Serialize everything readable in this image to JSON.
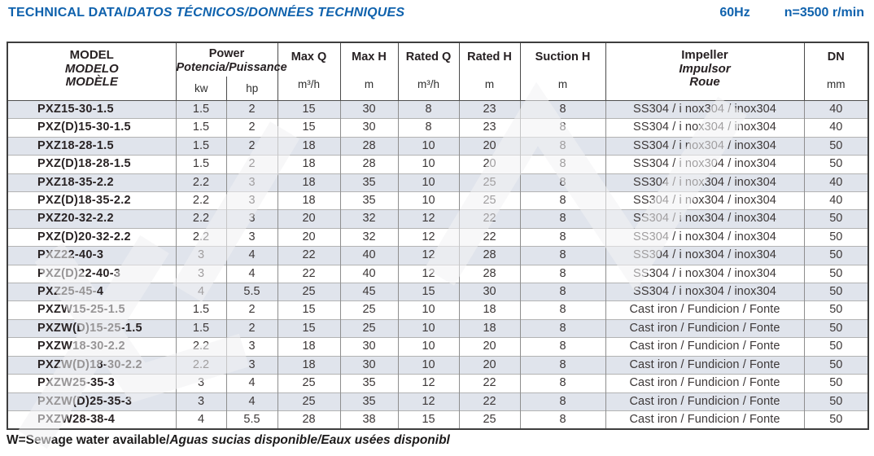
{
  "page": {
    "title_en": "TECHNICAL DATA/",
    "title_intl": "DATOS TÉCNICOS/DONNÉES TECHNIQUES",
    "frequency": "60Hz",
    "speed": "n=3500 r/min",
    "footnote_en": "W=Sewage water available/",
    "footnote_intl": "Aguas sucias disponible/Eaux usées disponibl"
  },
  "table": {
    "column_ids": [
      "model",
      "kw",
      "hp",
      "max-q",
      "max-h",
      "rated-q",
      "rated-h",
      "suction-h",
      "impeller",
      "dn"
    ],
    "headers": {
      "model": [
        "MODEL",
        "MODELO",
        "MODÈLE"
      ],
      "power": {
        "en": "Power",
        "intl": "Potencia/Puissance",
        "units": [
          "kw",
          "hp"
        ]
      },
      "max_q": {
        "label": "Max Q",
        "unit": "m³/h"
      },
      "max_h": {
        "label": "Max H",
        "unit": "m"
      },
      "rated_q": {
        "label": "Rated Q",
        "unit": "m³/h"
      },
      "rated_h": {
        "label": "Rated H",
        "unit": "m"
      },
      "suction_h": {
        "label": "Suction H",
        "unit": "m"
      },
      "impeller": [
        "Impeller",
        "Impulsor",
        "Roue"
      ],
      "dn": {
        "label": "DN",
        "unit": "mm"
      }
    },
    "rows": [
      [
        "PXZ15-30-1.5",
        "1.5",
        "2",
        "15",
        "30",
        "8",
        "23",
        "8",
        "SS304 / i nox304 / inox304",
        "40"
      ],
      [
        "PXZ(D)15-30-1.5",
        "1.5",
        "2",
        "15",
        "30",
        "8",
        "23",
        "8",
        "SS304 / i nox304 / inox304",
        "40"
      ],
      [
        "PXZ18-28-1.5",
        "1.5",
        "2",
        "18",
        "28",
        "10",
        "20",
        "8",
        "SS304 / i nox304 / inox304",
        "50"
      ],
      [
        "PXZ(D)18-28-1.5",
        "1.5",
        "2",
        "18",
        "28",
        "10",
        "20",
        "8",
        "SS304 / i nox304 / inox304",
        "50"
      ],
      [
        "PXZ18-35-2.2",
        "2.2",
        "3",
        "18",
        "35",
        "10",
        "25",
        "8",
        "SS304 / i nox304 / inox304",
        "40"
      ],
      [
        "PXZ(D)18-35-2.2",
        "2.2",
        "3",
        "18",
        "35",
        "10",
        "25",
        "8",
        "SS304 / i nox304 / inox304",
        "40"
      ],
      [
        "PXZ20-32-2.2",
        "2.2",
        "3",
        "20",
        "32",
        "12",
        "22",
        "8",
        "SS304 / i nox304 / inox304",
        "50"
      ],
      [
        "PXZ(D)20-32-2.2",
        "2.2",
        "3",
        "20",
        "32",
        "12",
        "22",
        "8",
        "SS304 / i nox304 / inox304",
        "50"
      ],
      [
        "PXZ22-40-3",
        "3",
        "4",
        "22",
        "40",
        "12",
        "28",
        "8",
        "SS304 / i nox304 / inox304",
        "50"
      ],
      [
        "PXZ(D)22-40-3",
        "3",
        "4",
        "22",
        "40",
        "12",
        "28",
        "8",
        "SS304 / i nox304 / inox304",
        "50"
      ],
      [
        "PXZ25-45-4",
        "4",
        "5.5",
        "25",
        "45",
        "15",
        "30",
        "8",
        "SS304 / i nox304 / inox304",
        "50"
      ],
      [
        "PXZW15-25-1.5",
        "1.5",
        "2",
        "15",
        "25",
        "10",
        "18",
        "8",
        "Cast iron / Fundicion / Fonte",
        "50"
      ],
      [
        "PXZW(D)15-25-1.5",
        "1.5",
        "2",
        "15",
        "25",
        "10",
        "18",
        "8",
        "Cast iron / Fundicion / Fonte",
        "50"
      ],
      [
        "PXZW18-30-2.2",
        "2.2",
        "3",
        "18",
        "30",
        "10",
        "20",
        "8",
        "Cast iron / Fundicion / Fonte",
        "50"
      ],
      [
        "PXZW(D)18-30-2.2",
        "2.2",
        "3",
        "18",
        "30",
        "10",
        "20",
        "8",
        "Cast iron / Fundicion / Fonte",
        "50"
      ],
      [
        "PXZW25-35-3",
        "3",
        "4",
        "25",
        "35",
        "12",
        "22",
        "8",
        "Cast iron / Fundicion / Fonte",
        "50"
      ],
      [
        "PXZW(D)25-35-3",
        "3",
        "4",
        "25",
        "35",
        "12",
        "22",
        "8",
        "Cast iron / Fundicion / Fonte",
        "50"
      ],
      [
        "PXZW28-38-4",
        "4",
        "5.5",
        "28",
        "38",
        "15",
        "25",
        "8",
        "Cast iron / Fundicion / Fonte",
        "50"
      ]
    ]
  },
  "colors": {
    "title_blue": "#0f62ad",
    "row_shaded": "#e0e4ec",
    "row_plain": "#ffffff",
    "border_dark": "#3e3e3e",
    "border_mid": "#8e8e8e",
    "text_dark": "#292324"
  }
}
